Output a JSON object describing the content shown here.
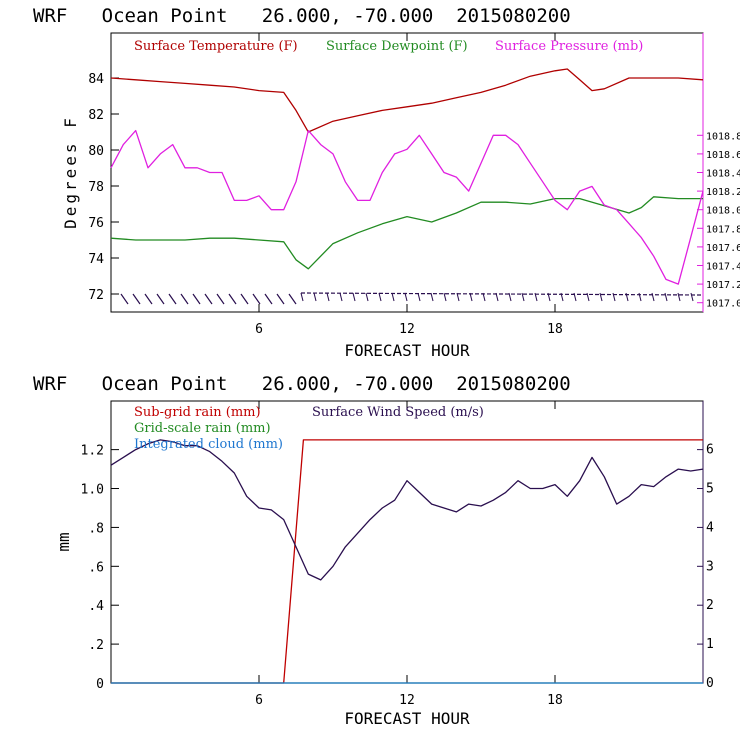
{
  "chart_data": [
    {
      "type": "line",
      "title": "WRF   Ocean Point   26.000, -70.000  2015080200",
      "xlabel": "FORECAST HOUR",
      "ylabel": "Degrees F",
      "xlim": [
        0,
        24
      ],
      "ylim": [
        71,
        86.5
      ],
      "xticks": [
        "6",
        "12",
        "18"
      ],
      "yticks": [
        "72",
        "74",
        "76",
        "78",
        "80",
        "82",
        "84"
      ],
      "y2lim": [
        1016.9,
        1019.9
      ],
      "y2ticks": [
        "1017.0",
        "1017.2",
        "1017.4",
        "1017.6",
        "1017.8",
        "1018.0",
        "1018.2",
        "1018.4",
        "1018.6",
        "1018.8"
      ],
      "grid": false,
      "legend": "top",
      "colors": {
        "temperature": "#b00000",
        "dewpoint": "#228b22",
        "pressure": "#e020e0",
        "wind_barbs": "#2a0f4f"
      },
      "series": [
        {
          "name": "Surface Temperature (F)",
          "axis": "left",
          "color": "#b00000",
          "x": [
            0,
            1,
            2,
            3,
            4,
            5,
            6,
            7,
            7.5,
            8,
            9,
            10,
            11,
            12,
            13,
            14,
            15,
            16,
            17,
            18,
            18.5,
            19,
            19.5,
            20,
            21,
            22,
            23,
            24
          ],
          "y": [
            84.0,
            83.9,
            83.8,
            83.7,
            83.6,
            83.5,
            83.3,
            83.2,
            82.2,
            81.0,
            81.6,
            81.9,
            82.2,
            82.4,
            82.6,
            82.9,
            83.2,
            83.6,
            84.1,
            84.4,
            84.5,
            83.9,
            83.3,
            83.4,
            84.0,
            84.0,
            84.0,
            83.9
          ]
        },
        {
          "name": "Surface Dewpoint (F)",
          "axis": "left",
          "color": "#228b22",
          "x": [
            0,
            1,
            2,
            3,
            4,
            5,
            6,
            7,
            7.5,
            8,
            9,
            10,
            11,
            12,
            13,
            14,
            15,
            16,
            17,
            18,
            19,
            20,
            21,
            21.5,
            22,
            23,
            24
          ],
          "y": [
            75.1,
            75.0,
            75.0,
            75.0,
            75.1,
            75.1,
            75.0,
            74.9,
            73.9,
            73.4,
            74.8,
            75.4,
            75.9,
            76.3,
            76.0,
            76.5,
            77.1,
            77.1,
            77.0,
            77.3,
            77.3,
            76.9,
            76.5,
            76.8,
            77.4,
            77.3,
            77.3
          ]
        },
        {
          "name": "Surface Pressure (mb)",
          "axis": "right",
          "color": "#e020e0",
          "x": [
            0,
            0.5,
            1,
            1.5,
            2,
            2.5,
            3,
            3.5,
            4,
            4.5,
            5,
            5.5,
            6,
            6.5,
            7,
            7.5,
            8,
            8.5,
            9,
            9.5,
            10,
            10.5,
            11,
            11.5,
            12,
            12.5,
            13,
            13.5,
            14,
            14.5,
            15,
            15.5,
            16,
            16.5,
            17,
            17.5,
            18,
            18.5,
            19,
            19.5,
            20,
            20.5,
            21,
            21.5,
            22,
            22.5,
            23,
            23.5,
            24
          ],
          "y": [
            1018.45,
            1018.7,
            1018.85,
            1018.45,
            1018.6,
            1018.7,
            1018.45,
            1018.45,
            1018.4,
            1018.4,
            1018.1,
            1018.1,
            1018.15,
            1018.0,
            1018.0,
            1018.3,
            1018.85,
            1018.7,
            1018.6,
            1018.3,
            1018.1,
            1018.1,
            1018.4,
            1018.6,
            1018.65,
            1018.8,
            1018.6,
            1018.4,
            1018.35,
            1018.2,
            1018.5,
            1018.8,
            1018.8,
            1018.7,
            1018.5,
            1018.3,
            1018.1,
            1018.0,
            1018.2,
            1018.25,
            1018.05,
            1018.0,
            1017.85,
            1017.7,
            1017.5,
            1017.25,
            1017.2,
            1017.7,
            1018.2
          ]
        }
      ]
    },
    {
      "type": "line",
      "title": "WRF   Ocean Point   26.000, -70.000  2015080200",
      "xlabel": "FORECAST HOUR",
      "ylabel": "mm",
      "xlim": [
        0,
        24
      ],
      "ylim": [
        0,
        1.45
      ],
      "xticks": [
        "6",
        "12",
        "18"
      ],
      "yticks": [
        "0",
        ".2",
        ".4",
        ".6",
        ".8",
        "1.0",
        "1.2"
      ],
      "y2lim": [
        0,
        7.25
      ],
      "y2ticks": [
        "0",
        "1",
        "2",
        "3",
        "4",
        "5",
        "6"
      ],
      "grid": false,
      "legend": "top-left",
      "colors": {
        "subgrid_rain": "#c00000",
        "gridscale_rain": "#228b22",
        "cloud": "#1f77d0",
        "wind_speed": "#2a0f4f"
      },
      "series": [
        {
          "name": "Sub-grid rain (mm)",
          "axis": "left",
          "color": "#c00000",
          "x": [
            0,
            7.0,
            7.8,
            24
          ],
          "y": [
            0,
            0,
            1.25,
            1.25
          ]
        },
        {
          "name": "Grid-scale rain (mm)",
          "axis": "left",
          "color": "#228b22",
          "x": [
            0,
            24
          ],
          "y": [
            0,
            0
          ]
        },
        {
          "name": "Integrated cloud (mm)",
          "axis": "left",
          "color": "#1f77d0",
          "x": [
            0,
            24
          ],
          "y": [
            0,
            0
          ]
        },
        {
          "name": "Surface Wind Speed (m/s)",
          "axis": "right",
          "color": "#2a0f4f",
          "x": [
            0,
            0.5,
            1,
            1.5,
            2,
            2.5,
            3,
            3.5,
            4,
            4.5,
            5,
            5.5,
            6,
            6.5,
            7,
            7.5,
            8,
            8.5,
            9,
            9.5,
            10,
            10.5,
            11,
            11.5,
            12,
            12.5,
            13,
            13.5,
            14,
            14.5,
            15,
            15.5,
            16,
            16.5,
            17,
            17.5,
            18,
            18.5,
            19,
            19.5,
            20,
            20.5,
            21,
            21.5,
            22,
            22.5,
            23,
            23.5,
            24
          ],
          "y": [
            5.6,
            5.8,
            6.0,
            6.15,
            6.25,
            6.2,
            6.1,
            6.1,
            5.95,
            5.7,
            5.4,
            4.8,
            4.5,
            4.45,
            4.2,
            3.5,
            2.8,
            2.65,
            3.0,
            3.5,
            3.85,
            4.2,
            4.5,
            4.7,
            5.2,
            4.9,
            4.6,
            4.5,
            4.4,
            4.6,
            4.55,
            4.7,
            4.9,
            5.2,
            5.0,
            5.0,
            5.1,
            4.8,
            5.2,
            5.8,
            5.3,
            4.6,
            4.8,
            5.1,
            5.05,
            5.3,
            5.5,
            5.45,
            5.5
          ]
        }
      ]
    }
  ]
}
